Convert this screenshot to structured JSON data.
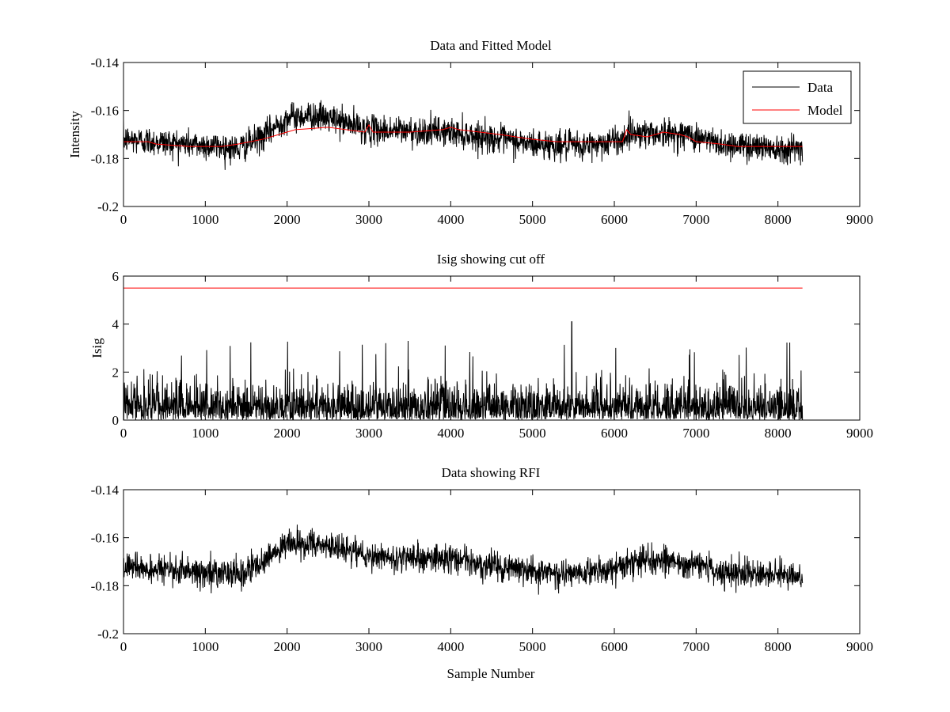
{
  "figure": {
    "background": "#ffffff"
  },
  "chart_data": [
    {
      "type": "line",
      "title": "Data and Fitted Model",
      "xlabel": "",
      "ylabel": "Intensity",
      "xlim": [
        0,
        9000
      ],
      "ylim": [
        -0.2,
        -0.14
      ],
      "y_reversed_labels": true,
      "xticks": [
        0,
        1000,
        2000,
        3000,
        4000,
        5000,
        6000,
        7000,
        8000,
        9000
      ],
      "xtick_labels": [
        "0",
        "1000",
        "2000",
        "3000",
        "4000",
        "5000",
        "6000",
        "7000",
        "8000",
        "9000"
      ],
      "yticks": [
        -0.14,
        -0.16,
        -0.18,
        -0.2
      ],
      "ytick_labels": [
        "-0.14",
        "-0.16",
        "-0.18",
        "-0.2"
      ],
      "legend": {
        "placement": "top-right",
        "entries": [
          "Data",
          "Model"
        ]
      },
      "series": [
        {
          "name": "Data",
          "color": "#000000",
          "kind": "noise",
          "x_end": 8300,
          "baseline": {
            "x": [
              0,
              1200,
              1400,
              1700,
              2000,
              2300,
              2600,
              3000,
              4000,
              5000,
              5600,
              6100,
              6200,
              6900,
              7300,
              8300
            ],
            "y": [
              -0.172,
              -0.175,
              -0.176,
              -0.171,
              -0.163,
              -0.162,
              -0.164,
              -0.168,
              -0.169,
              -0.174,
              -0.175,
              -0.172,
              -0.169,
              -0.17,
              -0.174,
              -0.176
            ]
          },
          "noise_amplitude": 0.006
        },
        {
          "name": "Model",
          "color": "#ff0000",
          "kind": "line",
          "x": [
            0,
            300,
            400,
            800,
            1200,
            1400,
            1700,
            1900,
            2100,
            2500,
            2950,
            3000,
            3050,
            3500,
            3900,
            4000,
            4100,
            4600,
            5000,
            5300,
            6100,
            6150,
            6200,
            6400,
            6600,
            6800,
            6900,
            7000,
            7300,
            7500,
            8300
          ],
          "y": [
            -0.173,
            -0.173,
            -0.174,
            -0.175,
            -0.175,
            -0.174,
            -0.172,
            -0.17,
            -0.168,
            -0.167,
            -0.169,
            -0.166,
            -0.169,
            -0.169,
            -0.168,
            -0.167,
            -0.168,
            -0.17,
            -0.172,
            -0.173,
            -0.173,
            -0.168,
            -0.17,
            -0.171,
            -0.169,
            -0.17,
            -0.171,
            -0.173,
            -0.174,
            -0.175,
            -0.175
          ]
        }
      ]
    },
    {
      "type": "line",
      "title": "Isig showing cut off",
      "xlabel": "",
      "ylabel": "Isig",
      "xlim": [
        0,
        9000
      ],
      "ylim": [
        0,
        6
      ],
      "xticks": [
        0,
        1000,
        2000,
        3000,
        4000,
        5000,
        6000,
        7000,
        8000,
        9000
      ],
      "xtick_labels": [
        "0",
        "1000",
        "2000",
        "3000",
        "4000",
        "5000",
        "6000",
        "7000",
        "8000",
        "9000"
      ],
      "yticks": [
        0,
        2,
        4,
        6
      ],
      "ytick_labels": [
        "0",
        "2",
        "4",
        "6"
      ],
      "series": [
        {
          "color": "#000000",
          "kind": "abs-noise",
          "x_end": 8300,
          "typical_peak": 2.2,
          "max_peak": 4.1,
          "max_peak_x": 5480
        },
        {
          "color": "#ff0000",
          "kind": "line",
          "x": [
            0,
            8300
          ],
          "y": [
            5.5,
            5.5
          ]
        }
      ]
    },
    {
      "type": "line",
      "title": "Data showing RFI",
      "xlabel": "Sample Number",
      "ylabel": "",
      "xlim": [
        0,
        9000
      ],
      "ylim": [
        -0.2,
        -0.14
      ],
      "y_reversed_labels": true,
      "xticks": [
        0,
        1000,
        2000,
        3000,
        4000,
        5000,
        6000,
        7000,
        8000,
        9000
      ],
      "xtick_labels": [
        "0",
        "1000",
        "2000",
        "3000",
        "4000",
        "5000",
        "6000",
        "7000",
        "8000",
        "9000"
      ],
      "yticks": [
        -0.14,
        -0.16,
        -0.18,
        -0.2
      ],
      "ytick_labels": [
        "-0.14",
        "-0.16",
        "-0.18",
        "-0.2"
      ],
      "series": [
        {
          "color": "#000000",
          "kind": "noise",
          "x_end": 8300,
          "baseline": {
            "x": [
              0,
              1200,
              1400,
              1700,
              2000,
              2300,
              2600,
              3000,
              4000,
              5000,
              5600,
              6100,
              6200,
              6900,
              7300,
              8300
            ],
            "y": [
              -0.172,
              -0.175,
              -0.176,
              -0.171,
              -0.163,
              -0.162,
              -0.164,
              -0.168,
              -0.169,
              -0.174,
              -0.175,
              -0.172,
              -0.169,
              -0.17,
              -0.174,
              -0.176
            ]
          },
          "noise_amplitude": 0.006
        }
      ]
    }
  ]
}
